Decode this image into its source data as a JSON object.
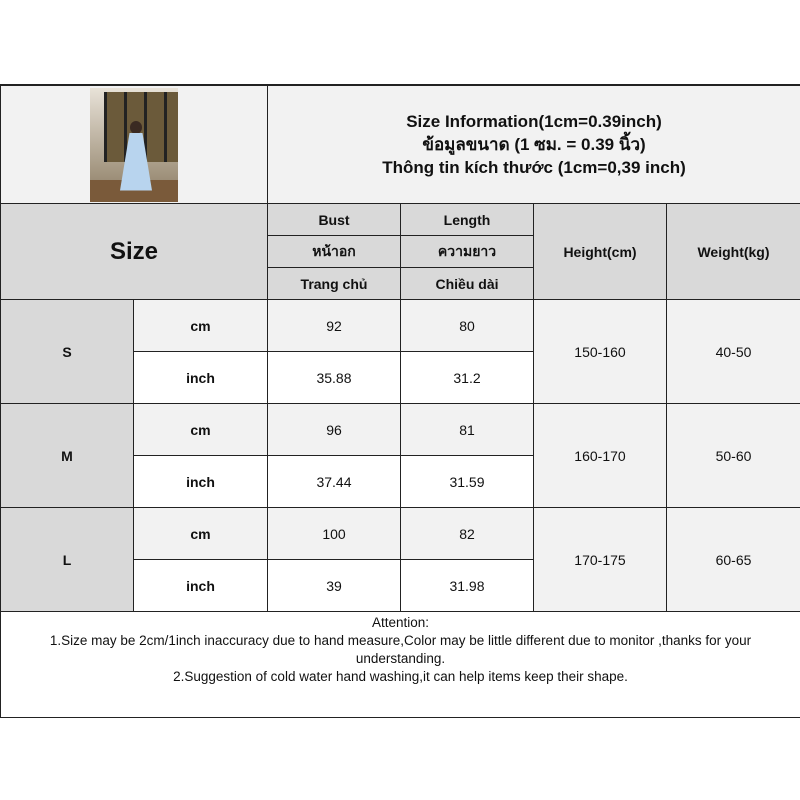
{
  "header": {
    "title_en": "Size Information(1cm=0.39inch)",
    "title_th": "ข้อมูลขนาด (1 ซม. = 0.39 นิ้ว)",
    "title_vi": "Thông tin kích thước (1cm=0,39 inch)"
  },
  "columns": {
    "size": "Size",
    "bust": [
      "Bust",
      "หน้าอก",
      "Trang chủ"
    ],
    "length": [
      "Length",
      "ความยาว",
      "Chiều dài"
    ],
    "height": "Height(cm)",
    "weight": "Weight(kg)"
  },
  "units": {
    "cm": "cm",
    "inch": "inch"
  },
  "rows": [
    {
      "size": "S",
      "bust_cm": "92",
      "length_cm": "80",
      "bust_in": "35.88",
      "length_in": "31.2",
      "height": "150-160",
      "weight": "40-50"
    },
    {
      "size": "M",
      "bust_cm": "96",
      "length_cm": "81",
      "bust_in": "37.44",
      "length_in": "31.59",
      "height": "160-170",
      "weight": "50-60"
    },
    {
      "size": "L",
      "bust_cm": "100",
      "length_cm": "82",
      "bust_in": "39",
      "length_in": "31.98",
      "height": "170-175",
      "weight": "60-65"
    }
  ],
  "notes": {
    "heading": "Attention:",
    "line1": "1.Size may be 2cm/1inch inaccuracy due to hand measure,Color may be little different due to monitor ,thanks for your understanding.",
    "line2": "2.Suggestion of cold water hand washing,it can help items keep their shape."
  }
}
